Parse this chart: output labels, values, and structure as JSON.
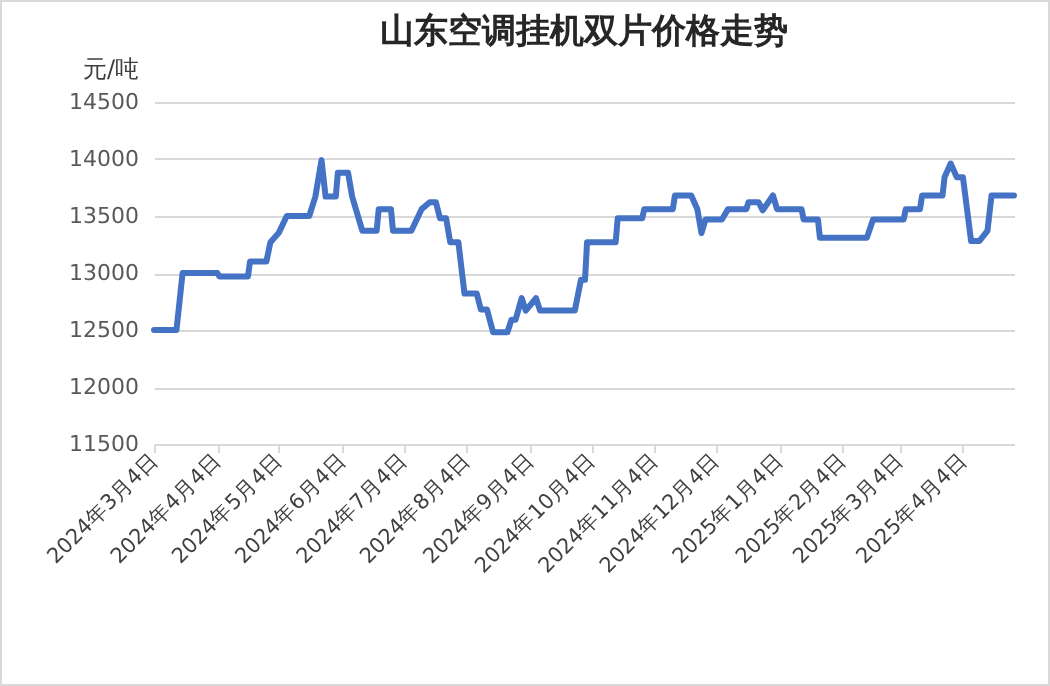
{
  "chart_data": {
    "type": "line",
    "title": "山东空调挂机双片价格走势",
    "ylabel": "元/吨",
    "x": [
      "2024-03-04",
      "2024-03-15",
      "2024-03-18",
      "2024-04-04",
      "2024-04-05",
      "2024-04-19",
      "2024-04-20",
      "2024-04-28",
      "2024-04-30",
      "2024-05-04",
      "2024-05-08",
      "2024-05-19",
      "2024-05-22",
      "2024-05-25",
      "2024-05-27",
      "2024-06-01",
      "2024-06-02",
      "2024-06-07",
      "2024-06-09",
      "2024-06-14",
      "2024-06-21",
      "2024-06-22",
      "2024-06-28",
      "2024-06-29",
      "2024-07-08",
      "2024-07-13",
      "2024-07-17",
      "2024-07-20",
      "2024-07-22",
      "2024-07-25",
      "2024-07-27",
      "2024-07-31",
      "2024-08-03",
      "2024-08-09",
      "2024-08-11",
      "2024-08-14",
      "2024-08-17",
      "2024-08-24",
      "2024-08-26",
      "2024-08-28",
      "2024-08-31",
      "2024-09-02",
      "2024-09-07",
      "2024-09-09",
      "2024-09-26",
      "2024-09-29",
      "2024-10-01",
      "2024-10-02",
      "2024-10-16",
      "2024-10-17",
      "2024-10-29",
      "2024-10-30",
      "2024-11-13",
      "2024-11-14",
      "2024-11-22",
      "2024-11-25",
      "2024-11-27",
      "2024-11-29",
      "2024-12-07",
      "2024-12-10",
      "2024-12-19",
      "2024-12-20",
      "2024-12-25",
      "2024-12-27",
      "2025-01-01",
      "2025-01-03",
      "2025-01-15",
      "2025-01-16",
      "2025-01-23",
      "2025-01-24",
      "2025-02-16",
      "2025-02-19",
      "2025-03-06",
      "2025-03-07",
      "2025-03-14",
      "2025-03-15",
      "2025-03-25",
      "2025-03-26",
      "2025-03-29",
      "2025-04-01",
      "2025-04-04",
      "2025-04-08",
      "2025-04-12",
      "2025-04-16",
      "2025-04-18",
      "2025-04-29"
    ],
    "series": [
      {
        "color": "#4472c4",
        "values": [
          12500,
          12500,
          13000,
          13000,
          12970,
          12970,
          13100,
          13100,
          13270,
          13350,
          13500,
          13500,
          13670,
          13990,
          13670,
          13670,
          13880,
          13880,
          13670,
          13370,
          13370,
          13560,
          13560,
          13370,
          13370,
          13560,
          13620,
          13620,
          13480,
          13480,
          13270,
          13270,
          12820,
          12820,
          12680,
          12680,
          12480,
          12480,
          12590,
          12590,
          12780,
          12670,
          12780,
          12670,
          12670,
          12940,
          12940,
          13270,
          13270,
          13480,
          13480,
          13560,
          13560,
          13680,
          13680,
          13560,
          13350,
          13470,
          13470,
          13560,
          13560,
          13620,
          13620,
          13550,
          13680,
          13560,
          13560,
          13470,
          13470,
          13310,
          13310,
          13470,
          13470,
          13560,
          13560,
          13680,
          13680,
          13840,
          13960,
          13840,
          13840,
          13280,
          13280,
          13370,
          13680,
          13680
        ]
      }
    ],
    "xlim": [
      "2024-03-04",
      "2025-04-29"
    ],
    "xticks": [
      {
        "value": "2024-03-04",
        "label": "2024年3月4日"
      },
      {
        "value": "2024-04-04",
        "label": "2024年4月4日"
      },
      {
        "value": "2024-05-04",
        "label": "2024年5月4日"
      },
      {
        "value": "2024-06-04",
        "label": "2024年6月4日"
      },
      {
        "value": "2024-07-04",
        "label": "2024年7月4日"
      },
      {
        "value": "2024-08-04",
        "label": "2024年8月4日"
      },
      {
        "value": "2024-09-04",
        "label": "2024年9月4日"
      },
      {
        "value": "2024-10-04",
        "label": "2024年10月4日"
      },
      {
        "value": "2024-11-04",
        "label": "2024年11月4日"
      },
      {
        "value": "2024-12-04",
        "label": "2024年12月4日"
      },
      {
        "value": "2025-01-04",
        "label": "2025年1月4日"
      },
      {
        "value": "2025-02-04",
        "label": "2025年2月4日"
      },
      {
        "value": "2025-03-04",
        "label": "2025年3月4日"
      },
      {
        "value": "2025-04-04",
        "label": "2025年4月4日"
      }
    ],
    "ylim": [
      11500,
      14500
    ],
    "yticks": [
      11500,
      12000,
      12500,
      13000,
      13500,
      14000,
      14500
    ],
    "grid": "y",
    "marker": "none",
    "line_style": "solid"
  }
}
